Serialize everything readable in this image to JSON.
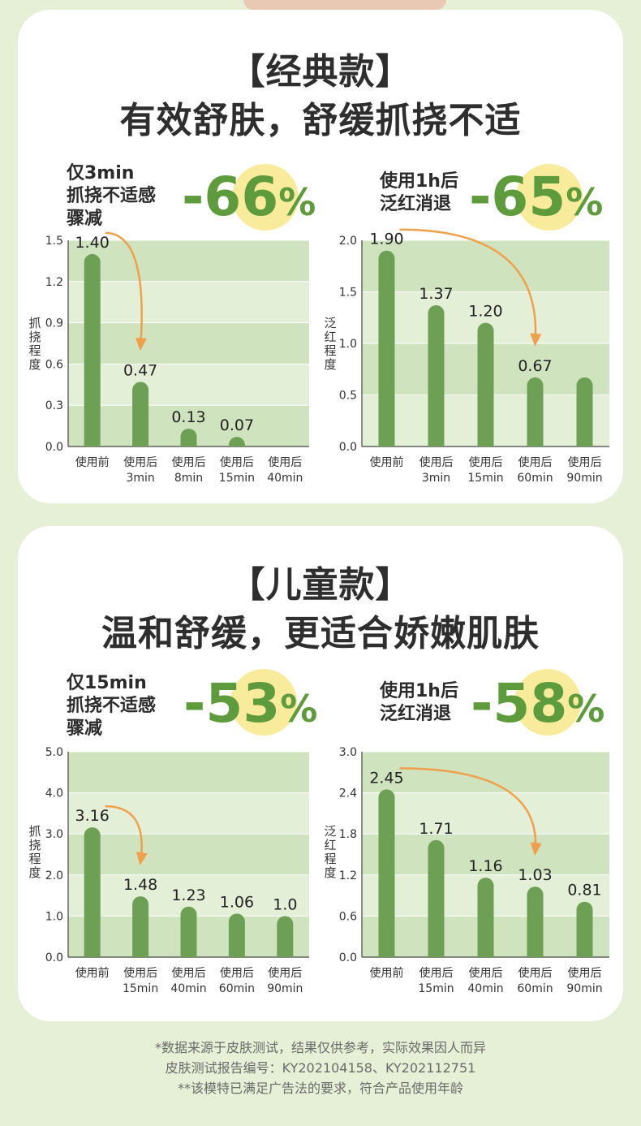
{
  "colors": {
    "background": "#e6f0d6",
    "card": "#ffffff",
    "accent_green": "#5e9b3c",
    "bar_green": "#6d9f54",
    "band_dark": "#cfe3bf",
    "band_light": "#e4efd8",
    "arrow_orange": "#f0a04b",
    "highlight_yellow": "#f8ec9c"
  },
  "section1": {
    "title": "【经典款】",
    "subtitle": "有效舒肤，舒缓抓挠不适",
    "left_stat": {
      "lines": [
        "仅3min",
        "抓挠不适感",
        "骤减"
      ],
      "value": "-66",
      "unit": "%"
    },
    "right_stat": {
      "lines": [
        "使用1h后",
        "泛红消退"
      ],
      "value": "-65",
      "unit": "%"
    }
  },
  "section2": {
    "title": "【儿童款】",
    "subtitle": "温和舒缓，更适合娇嫩肌肤",
    "left_stat": {
      "lines": [
        "仅15min",
        "抓挠不适感",
        "骤减"
      ],
      "value": "-53",
      "unit": "%"
    },
    "right_stat": {
      "lines": [
        "使用1h后",
        "泛红消退"
      ],
      "value": "-58",
      "unit": "%"
    }
  },
  "chart_data": [
    {
      "id": "classic-scratch",
      "type": "bar",
      "ylabel": "抓挠程度",
      "ylim": [
        0,
        1.5
      ],
      "yticks": [
        "0.0",
        "0.3",
        "0.6",
        "0.9",
        "1.2",
        "1.5"
      ],
      "categories": [
        [
          "使用前"
        ],
        [
          "使用后",
          "3min"
        ],
        [
          "使用后",
          "8min"
        ],
        [
          "使用后",
          "15min"
        ],
        [
          "使用后",
          "40min"
        ]
      ],
      "values": [
        1.4,
        0.47,
        0.13,
        0.07,
        0
      ],
      "labels": [
        "1.40",
        "0.47",
        "0.13",
        "0.07",
        ""
      ],
      "arrow": [
        0,
        1
      ]
    },
    {
      "id": "classic-redness",
      "type": "bar",
      "ylabel": "泛红程度",
      "ylim": [
        0,
        2.0
      ],
      "yticks": [
        "0.0",
        "0.5",
        "1.0",
        "1.5",
        "2.0"
      ],
      "categories": [
        [
          "使用前"
        ],
        [
          "使用后",
          "3min"
        ],
        [
          "使用后",
          "15min"
        ],
        [
          "使用后",
          "60min"
        ],
        [
          "使用后",
          "90min"
        ]
      ],
      "values": [
        1.9,
        1.37,
        1.2,
        0.67,
        0.67
      ],
      "labels": [
        "1.90",
        "1.37",
        "1.20",
        "0.67",
        ""
      ],
      "arrow": [
        0,
        3
      ]
    },
    {
      "id": "kids-scratch",
      "type": "bar",
      "ylabel": "抓挠程度",
      "ylim": [
        0,
        5.0
      ],
      "yticks": [
        "0.0",
        "1.0",
        "2.0",
        "3.0",
        "4.0",
        "5.0"
      ],
      "categories": [
        [
          "使用前"
        ],
        [
          "使用后",
          "15min"
        ],
        [
          "使用后",
          "40min"
        ],
        [
          "使用后",
          "60min"
        ],
        [
          "使用后",
          "90min"
        ]
      ],
      "values": [
        3.16,
        1.48,
        1.23,
        1.06,
        1.0
      ],
      "labels": [
        "3.16",
        "1.48",
        "1.23",
        "1.06",
        "1.0"
      ],
      "arrow": [
        0,
        1
      ]
    },
    {
      "id": "kids-redness",
      "type": "bar",
      "ylabel": "泛红程度",
      "ylim": [
        0,
        3.0
      ],
      "yticks": [
        "0.0",
        "0.6",
        "1.2",
        "1.8",
        "2.4",
        "3.0"
      ],
      "categories": [
        [
          "使用前"
        ],
        [
          "使用后",
          "15min"
        ],
        [
          "使用后",
          "40min"
        ],
        [
          "使用后",
          "60min"
        ],
        [
          "使用后",
          "90min"
        ]
      ],
      "values": [
        2.45,
        1.71,
        1.16,
        1.03,
        0.81
      ],
      "labels": [
        "2.45",
        "1.71",
        "1.16",
        "1.03",
        "0.81"
      ],
      "arrow": [
        0,
        3
      ]
    }
  ],
  "footer": {
    "line1": "*数据来源于皮肤测试，结果仅供参考，实际效果因人而异",
    "line2": "皮肤测试报告编号：KY202104158、KY202112751",
    "line3": "**该模特已满足广告法的要求，符合产品使用年龄"
  }
}
